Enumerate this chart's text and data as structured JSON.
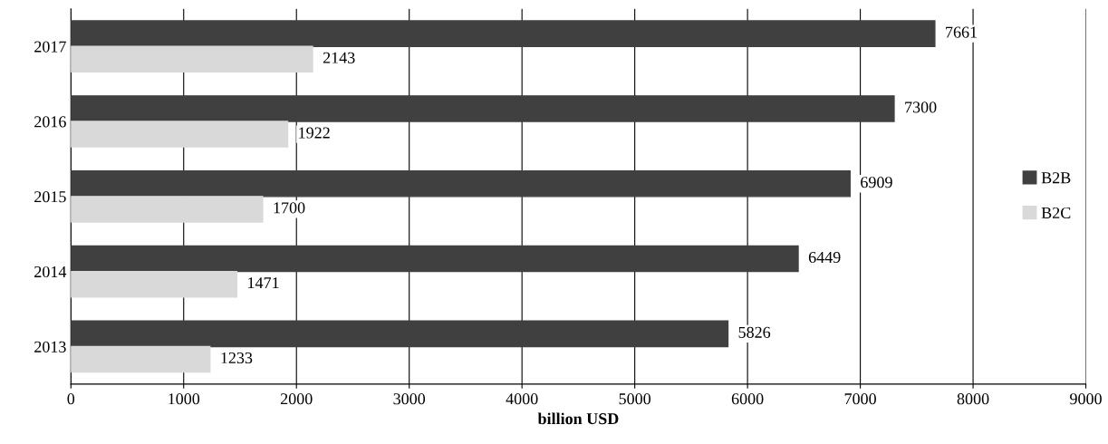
{
  "chart_data": {
    "type": "bar",
    "orientation": "horizontal",
    "xlabel": "billion USD",
    "categories": [
      "2017",
      "2016",
      "2015",
      "2014",
      "2013"
    ],
    "series": [
      {
        "name": "B2B",
        "color": "#404040",
        "values": [
          7661,
          7300,
          6909,
          6449,
          5826
        ]
      },
      {
        "name": "B2C",
        "color": "#d9d9d9",
        "values": [
          2143,
          1922,
          1700,
          1471,
          1233
        ]
      }
    ],
    "xlim": [
      0,
      9000
    ],
    "xticks": [
      0,
      1000,
      2000,
      3000,
      4000,
      5000,
      6000,
      7000,
      8000,
      9000
    ],
    "grid": "x",
    "legend": "right",
    "data_labels": true
  }
}
